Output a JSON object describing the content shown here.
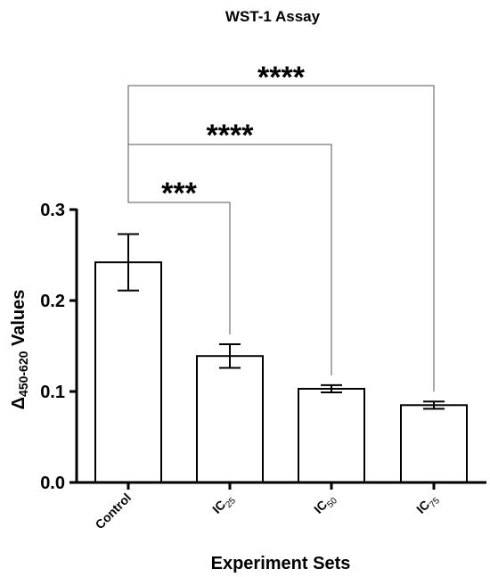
{
  "chart_data": {
    "type": "bar",
    "title": "WST-1 Assay",
    "xlabel": "Experiment Sets",
    "ylabel": {
      "prefix": "Δ",
      "subscript": "450-620",
      "suffix": " Values"
    },
    "ylim": [
      0,
      0.3
    ],
    "yticks": [
      "0.0",
      "0.1",
      "0.2",
      "0.3"
    ],
    "ytick_values": [
      0,
      0.1,
      0.2,
      0.3
    ],
    "categories": [
      {
        "main": "Control",
        "sub": ""
      },
      {
        "main": "IC",
        "sub": "25"
      },
      {
        "main": "IC",
        "sub": "50"
      },
      {
        "main": "IC",
        "sub": "75"
      }
    ],
    "values": [
      0.242,
      0.139,
      0.103,
      0.085
    ],
    "errors": [
      0.031,
      0.013,
      0.004,
      0.004
    ],
    "bar_fill": "#ffffff",
    "stroke_color": "#000000",
    "grid": false,
    "significance": [
      {
        "from": 0,
        "to": 1,
        "label": "***"
      },
      {
        "from": 0,
        "to": 2,
        "label": "****"
      },
      {
        "from": 0,
        "to": 3,
        "label": "****"
      }
    ]
  }
}
